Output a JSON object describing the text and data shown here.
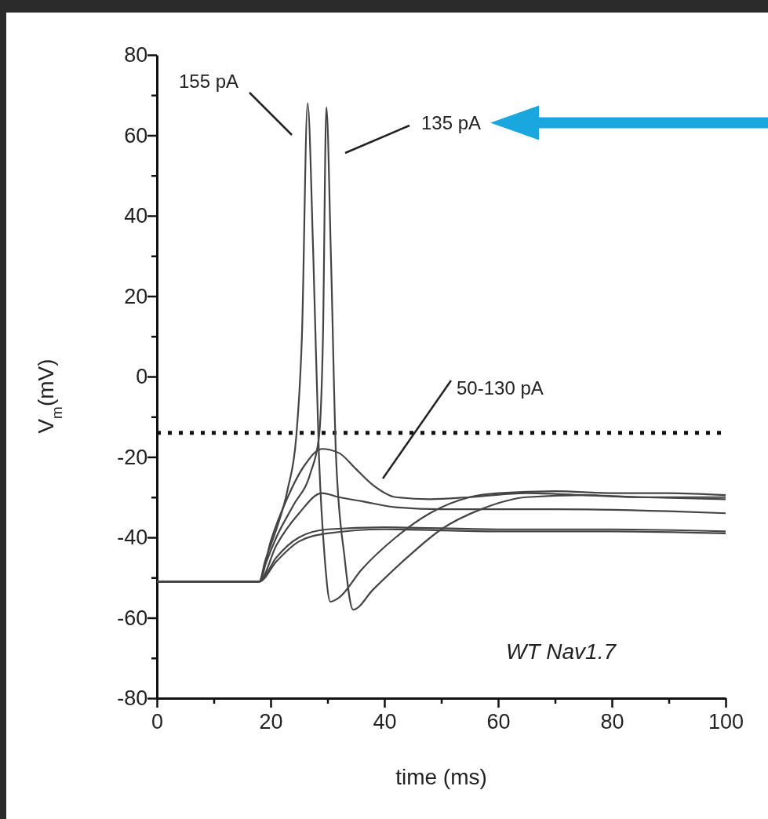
{
  "chart_data": {
    "type": "line",
    "xlabel": "time (ms)",
    "ylabel": "V$_{m}$(mV)",
    "xlim": [
      0,
      100
    ],
    "ylim": [
      -80,
      80
    ],
    "xticks": [
      0,
      {
        "value": 10,
        "label": null
      },
      20,
      {
        "value": 30,
        "label": null
      },
      40,
      {
        "value": 50,
        "label": null
      },
      60,
      {
        "value": 70,
        "label": null
      },
      80,
      {
        "value": 90,
        "label": null
      },
      100
    ],
    "yticks": [
      -80,
      {
        "value": -70,
        "label": null
      },
      -60,
      {
        "value": -50,
        "label": null
      },
      -40,
      {
        "value": -30,
        "label": null
      },
      -20,
      {
        "value": -10,
        "label": null
      },
      0,
      {
        "value": 10,
        "label": null
      },
      20,
      {
        "value": 30,
        "label": null
      },
      40,
      {
        "value": 50,
        "label": null
      },
      60,
      {
        "value": 70,
        "label": null
      },
      80
    ],
    "ref_lines": [
      {
        "axis": "y",
        "value": -14,
        "color": "#111111",
        "line_style": "dotted"
      }
    ],
    "annotations": [
      "155 pA",
      "135 pA",
      "50-130 pA",
      "WT Nav1.7"
    ],
    "series": [
      {
        "color": "#444444",
        "x": [
          0,
          18,
          19,
          21,
          23,
          24.5,
          25.5,
          26.5,
          27.5,
          28.5,
          29.5,
          30.5,
          32,
          36,
          42,
          48,
          55,
          60,
          70,
          80,
          90,
          100
        ],
        "values": [
          -51,
          -51,
          -46,
          -38,
          -28,
          -15,
          10,
          68,
          30,
          -20,
          -45,
          -56,
          -55,
          -48,
          -40,
          -34,
          -30,
          -29,
          -28.5,
          -29,
          -29,
          -29.5
        ]
      },
      {
        "color": "#444444",
        "x": [
          0,
          18,
          19,
          21,
          24,
          27,
          28.5,
          29.2,
          29.8,
          30.6,
          31.5,
          33,
          34.5,
          38,
          44,
          50,
          57,
          65,
          75,
          85,
          100
        ],
        "values": [
          -51,
          -51,
          -47,
          -40,
          -32,
          -24,
          -15,
          10,
          67,
          30,
          -20,
          -45,
          -58,
          -53,
          -45,
          -38,
          -33,
          -30,
          -29.5,
          -30,
          -30.5
        ]
      },
      {
        "color": "#444444",
        "x": [
          0,
          18,
          20,
          23,
          26,
          29,
          32,
          35,
          38,
          42,
          48,
          55,
          65,
          75,
          85,
          100
        ],
        "values": [
          -51,
          -51,
          -41,
          -30,
          -22,
          -18,
          -19,
          -23,
          -27,
          -30,
          -30.5,
          -30,
          -29,
          -29.5,
          -30,
          -30
        ]
      },
      {
        "color": "#444444",
        "x": [
          0,
          18,
          21,
          25,
          29,
          32,
          36,
          42,
          50,
          70,
          90,
          100
        ],
        "values": [
          -51,
          -51,
          -42,
          -34,
          -29,
          -30,
          -31,
          -32.5,
          -33,
          -33,
          -33.5,
          -34
        ]
      },
      {
        "color": "#444444",
        "x": [
          0,
          18,
          21,
          25,
          30,
          40,
          60,
          80,
          100
        ],
        "values": [
          -51,
          -51,
          -45,
          -40,
          -38,
          -37.5,
          -38,
          -38,
          -38.5
        ]
      },
      {
        "color": "#444444",
        "x": [
          0,
          18,
          21,
          25,
          30,
          40,
          60,
          80,
          100
        ],
        "values": [
          -51,
          -51,
          -46,
          -41,
          -39,
          -38,
          -38.5,
          -38.5,
          -39
        ]
      }
    ]
  }
}
